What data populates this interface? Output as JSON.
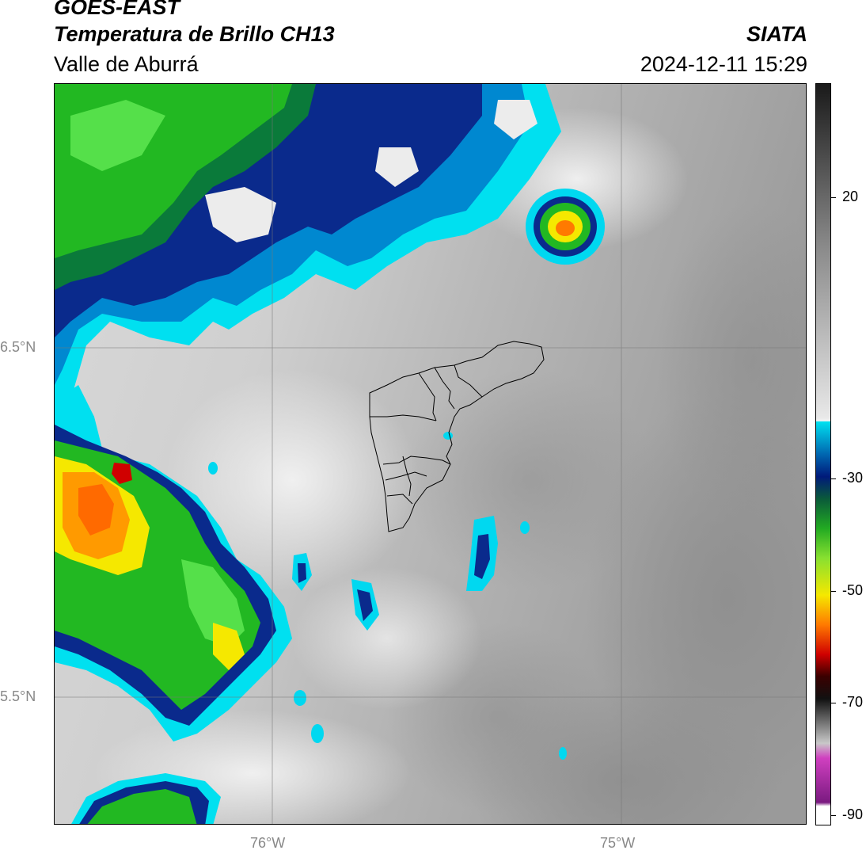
{
  "header": {
    "satellite": "GOES-EAST",
    "product": "Temperatura de Brillo CH13",
    "region": "Valle de Aburrá",
    "agency": "SIATA",
    "datetime": "2024-12-11 15:29"
  },
  "map": {
    "lat_labels": [
      "6.5°N",
      "5.5°N"
    ],
    "lon_labels": [
      "76°W",
      "75°W"
    ]
  },
  "colorbar": {
    "labels": [
      "20",
      "-30",
      "-50",
      "-70",
      "-90"
    ],
    "colors": {
      "warm_dark": "#1a1a1a",
      "gray_mid": "#8a8a8a",
      "gray_light": "#e8e8e8",
      "cyan": "#00e0f0",
      "blue": "#0066b0",
      "navy": "#001a7a",
      "green": "#22aa22",
      "yellow": "#f5e800",
      "orange": "#ff7a00",
      "red": "#d00000",
      "magenta": "#d040c0",
      "purple": "#7a1a80"
    }
  }
}
